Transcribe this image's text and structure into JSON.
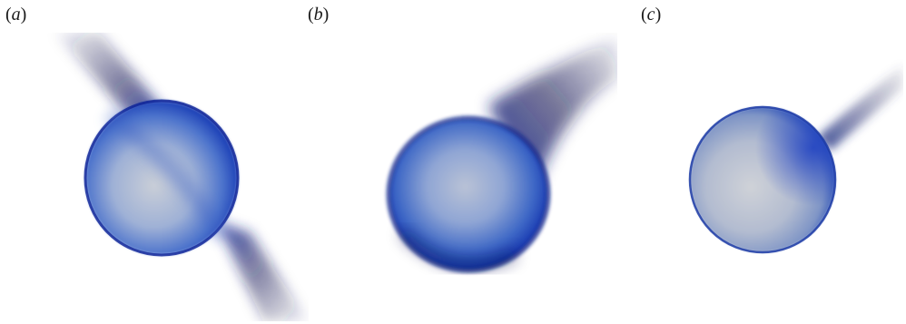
{
  "panels": [
    {
      "id": "a",
      "label_letter": "a"
    },
    {
      "id": "b",
      "label_letter": "b"
    },
    {
      "id": "c",
      "label_letter": "c"
    }
  ],
  "colors": {
    "background": "#ffffff",
    "surface_blue_dark": "#0b1f8f",
    "surface_blue": "#2a54c8",
    "interior_grey": "#c7ccd6",
    "wake_navy": "#14164f"
  }
}
